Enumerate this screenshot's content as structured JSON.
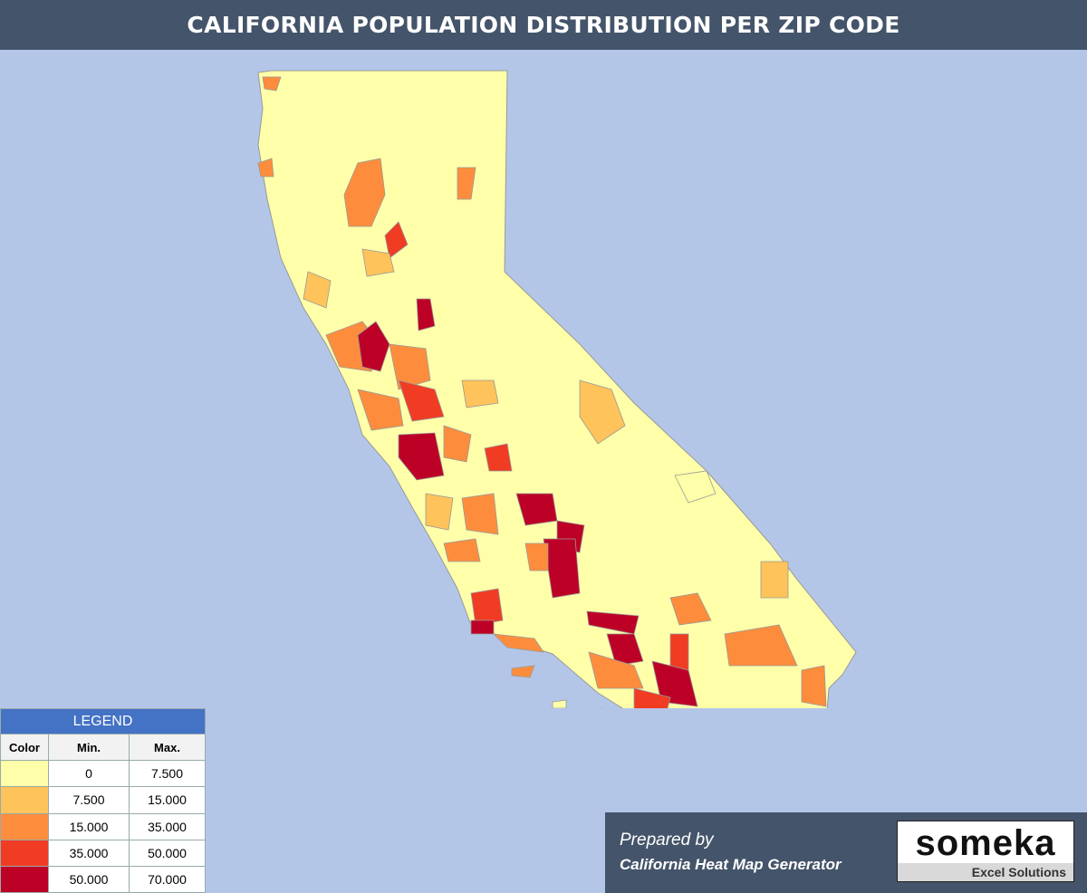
{
  "header": {
    "title": "CALIFORNIA POPULATION DISTRIBUTION PER ZIP CODE"
  },
  "legend": {
    "title": "LEGEND",
    "columns": [
      "Color",
      "Min.",
      "Max."
    ],
    "rows": [
      {
        "color": "#ffffaa",
        "min": "0",
        "max": "7.500"
      },
      {
        "color": "#fec35a",
        "min": "7.500",
        "max": "15.000"
      },
      {
        "color": "#fd8d3c",
        "min": "15.000",
        "max": "35.000"
      },
      {
        "color": "#f03c23",
        "min": "35.000",
        "max": "50.000"
      },
      {
        "color": "#bd0026",
        "min": "50.000",
        "max": "70.000"
      }
    ]
  },
  "footer": {
    "prepared_by": "Prepared by",
    "generator": "California Heat Map Generator",
    "logo": "someka",
    "logo_subtitle": "Excel Solutions"
  }
}
